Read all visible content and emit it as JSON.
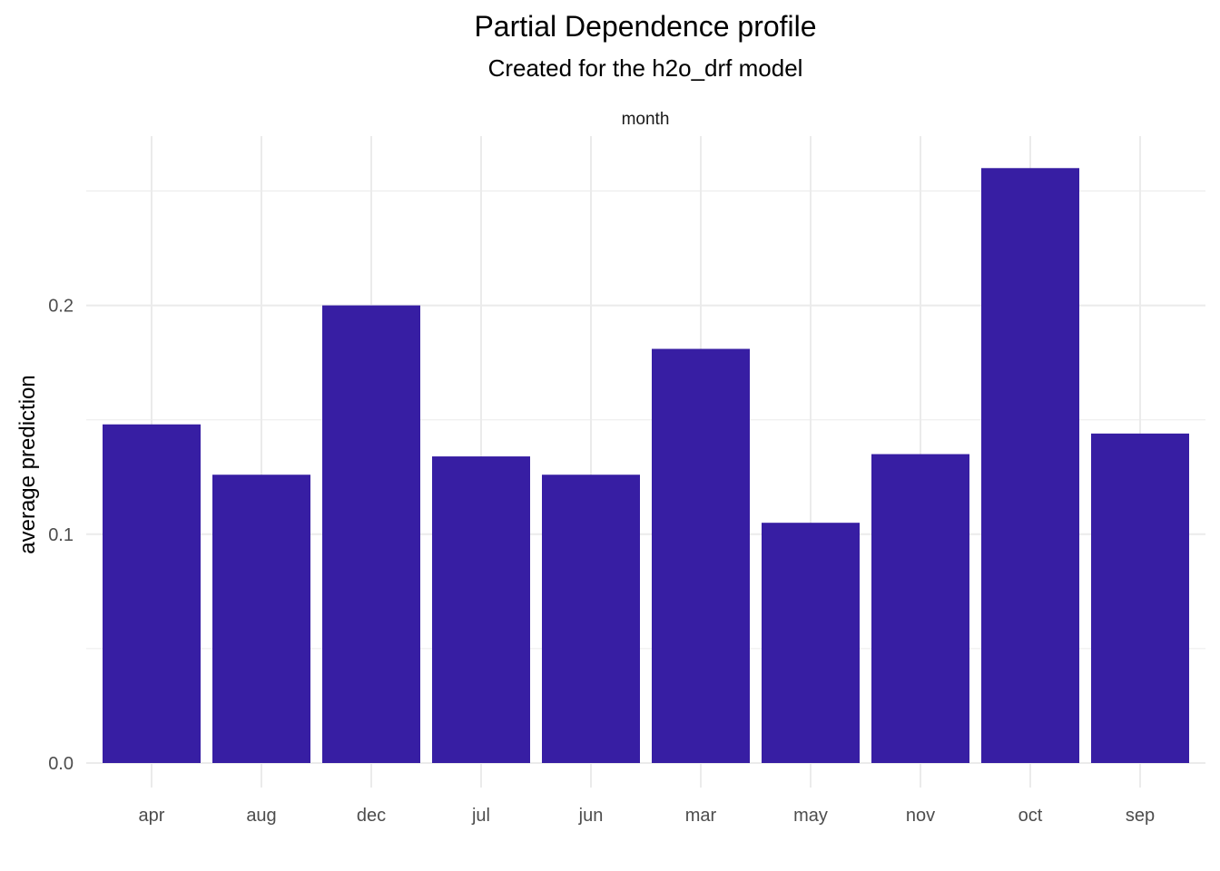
{
  "chart_data": {
    "type": "bar",
    "title": "Partial Dependence profile",
    "subtitle": "Created for the h2o_drf model",
    "facet_label": "month",
    "xlabel": "",
    "ylabel": "average prediction",
    "categories": [
      "apr",
      "aug",
      "dec",
      "jul",
      "jun",
      "mar",
      "may",
      "nov",
      "oct",
      "sep"
    ],
    "values": [
      0.148,
      0.126,
      0.2,
      0.134,
      0.126,
      0.181,
      0.105,
      0.135,
      0.26,
      0.144
    ],
    "ylim": [
      0,
      0.273
    ],
    "y_ticks": [
      0.0,
      0.1,
      0.2
    ],
    "y_tick_labels": [
      "0.0",
      "0.1",
      "0.2"
    ],
    "grid": true,
    "bar_color": "#371EA3",
    "grid_color": "#EBEBEB"
  }
}
